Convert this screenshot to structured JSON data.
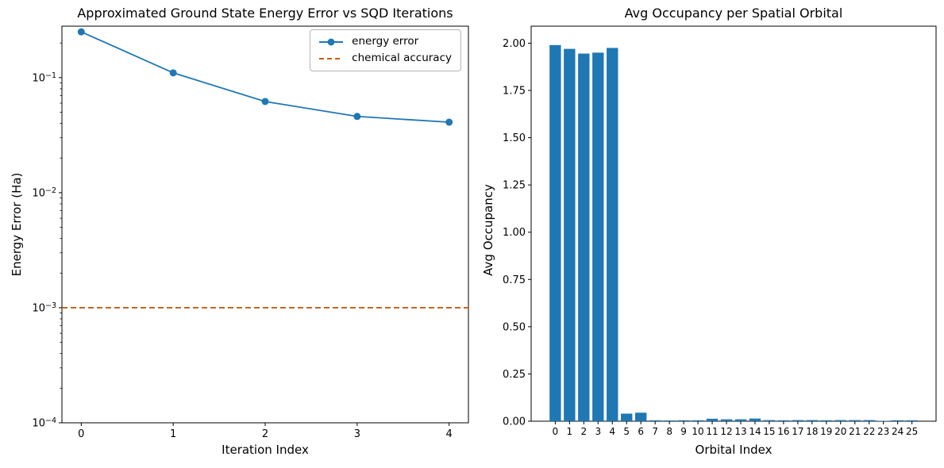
{
  "figure": {
    "background": "#ffffff",
    "line_blue": "#1f77b4",
    "dash_orange": "#c65c10",
    "bar_blue": "#1f77b4"
  },
  "left_plot": {
    "title": "Approximated Ground State Energy Error vs SQD Iterations",
    "xlabel": "Iteration Index",
    "ylabel": "Energy Error (Ha)"
  },
  "right_plot": {
    "title": "Avg Occupancy per Spatial Orbital",
    "xlabel": "Orbital Index",
    "ylabel": "Avg Occupancy"
  },
  "chart_data": [
    {
      "type": "line",
      "title": "Approximated Ground State Energy Error vs SQD Iterations",
      "xlabel": "Iteration Index",
      "ylabel": "Energy Error (Ha)",
      "yscale": "log",
      "x": [
        0,
        1,
        2,
        3,
        4
      ],
      "series": [
        {
          "name": "energy error",
          "style": "solid",
          "marker": "circle",
          "color": "#1f77b4",
          "values": [
            0.25,
            0.11,
            0.062,
            0.046,
            0.041
          ]
        },
        {
          "name": "chemical accuracy",
          "style": "dashed",
          "color": "#c65c10",
          "constant": 0.001
        }
      ],
      "xticks": [
        0,
        1,
        2,
        3,
        4
      ],
      "ytick_exponents": [
        -1,
        -2,
        -3,
        -4
      ],
      "xlim": [
        -0.21,
        4.21
      ],
      "ylim": [
        0.0001,
        0.28
      ],
      "grid": false,
      "legend_position": "upper right"
    },
    {
      "type": "bar",
      "title": "Avg Occupancy per Spatial Orbital",
      "xlabel": "Orbital Index",
      "ylabel": "Avg Occupancy",
      "categories": [
        0,
        1,
        2,
        3,
        4,
        5,
        6,
        7,
        8,
        9,
        10,
        11,
        12,
        13,
        14,
        15,
        16,
        17,
        18,
        19,
        20,
        21,
        22,
        23,
        24,
        25
      ],
      "values": [
        1.99,
        1.97,
        1.945,
        1.95,
        1.975,
        0.04,
        0.045,
        0.005,
        0.004,
        0.005,
        0.005,
        0.013,
        0.01,
        0.01,
        0.014,
        0.006,
        0.005,
        0.006,
        0.006,
        0.005,
        0.006,
        0.006,
        0.006,
        0.002,
        0.005,
        0.005
      ],
      "bar_color": "#1f77b4",
      "bar_rel_width": 0.8,
      "yticks": [
        0,
        0.25,
        0.5,
        0.75,
        1,
        1.25,
        1.5,
        1.75,
        2
      ],
      "xlim": [
        -1.69,
        26.69
      ],
      "ylim": [
        0,
        2.09
      ],
      "grid": false
    }
  ]
}
